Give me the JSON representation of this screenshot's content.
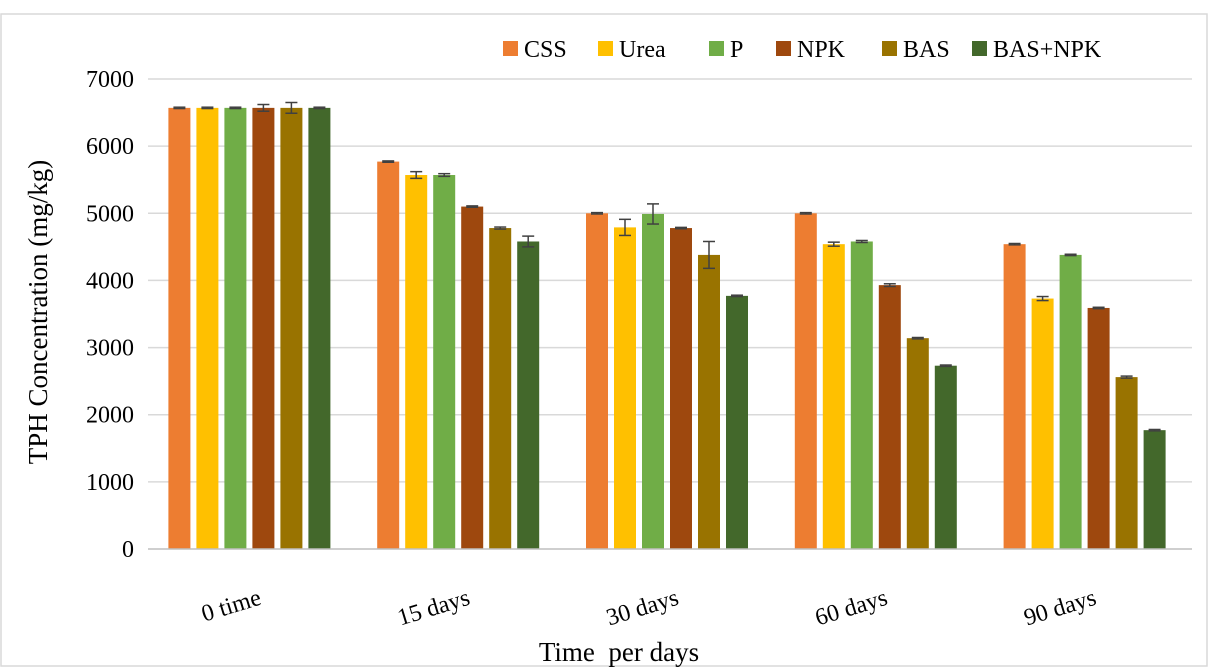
{
  "chart_data": {
    "type": "bar",
    "title": "",
    "xlabel": "Time  per days",
    "ylabel": "TPH Concentration (mg/kg)",
    "ylim": [
      0,
      7000
    ],
    "yticks": [
      "0",
      "1000",
      "2000",
      "3000",
      "4000",
      "5000",
      "6000",
      "7000"
    ],
    "categories": [
      "0 time",
      "15 days",
      "30 days",
      "60 days",
      "90 days"
    ],
    "grid": "horizontal",
    "legend_position": "top-right",
    "series": [
      {
        "name": "CSS",
        "color": "#ED7D31",
        "values": [
          6570,
          5770,
          5000,
          5000,
          4540
        ],
        "errors": [
          10,
          10,
          10,
          10,
          10
        ]
      },
      {
        "name": "Urea",
        "color": "#FFC000",
        "values": [
          6570,
          5570,
          4790,
          4540,
          3730
        ],
        "errors": [
          10,
          50,
          120,
          30,
          30
        ]
      },
      {
        "name": "P",
        "color": "#70AD47",
        "values": [
          6570,
          5570,
          4990,
          4580,
          4380
        ],
        "errors": [
          10,
          20,
          150,
          15,
          10
        ]
      },
      {
        "name": "NPK",
        "color": "#9E480E",
        "values": [
          6570,
          5100,
          4780,
          3930,
          3590
        ],
        "errors": [
          50,
          10,
          10,
          20,
          10
        ]
      },
      {
        "name": "BAS",
        "color": "#997300",
        "values": [
          6570,
          4780,
          4380,
          3140,
          2560
        ],
        "errors": [
          80,
          15,
          200,
          10,
          15
        ]
      },
      {
        "name": "BAS+NPK",
        "color": "#43682B",
        "values": [
          6570,
          4580,
          3770,
          2730,
          1770
        ],
        "errors": [
          10,
          80,
          10,
          10,
          10
        ]
      }
    ]
  }
}
